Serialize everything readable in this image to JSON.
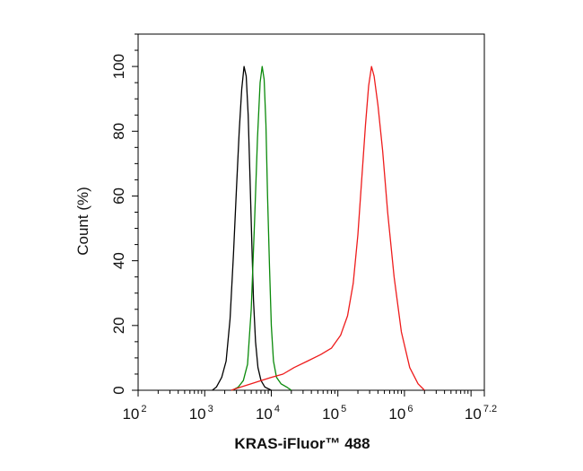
{
  "chart_data": {
    "type": "line",
    "title": "",
    "xlabel": "KRAS-iFluor™ 488",
    "ylabel": "Count (%)",
    "x_scale": "log",
    "xlim": [
      100,
      15848931.9
    ],
    "ylim": [
      0,
      110
    ],
    "grid": false,
    "legend": "none",
    "x_ticks": [
      {
        "base": "10",
        "exp": "2"
      },
      {
        "base": "10",
        "exp": "3"
      },
      {
        "base": "10",
        "exp": "4"
      },
      {
        "base": "10",
        "exp": "5"
      },
      {
        "base": "10",
        "exp": "6"
      },
      {
        "base": "10",
        "exp": "7.2"
      }
    ],
    "y_ticks": [
      "0",
      "20",
      "40",
      "60",
      "80",
      "100"
    ],
    "series": [
      {
        "color": "#000000",
        "x": [
          1300,
          1500,
          1800,
          2100,
          2400,
          2700,
          3000,
          3300,
          3600,
          3900,
          4200,
          4500,
          4800,
          5100,
          5400,
          5800,
          6300,
          7000,
          8000,
          10000
        ],
        "y": [
          0,
          1,
          4,
          9,
          22,
          42,
          62,
          80,
          93,
          100,
          97,
          85,
          65,
          45,
          28,
          15,
          7,
          3,
          1,
          0
        ]
      },
      {
        "color": "#0a8a0a",
        "x": [
          2600,
          3200,
          3800,
          4400,
          5000,
          5600,
          6200,
          6800,
          7300,
          7800,
          8300,
          8800,
          9400,
          10000,
          10800,
          12000,
          14000,
          17000,
          20000
        ],
        "y": [
          0,
          1,
          3,
          8,
          25,
          52,
          78,
          95,
          100,
          96,
          82,
          60,
          38,
          20,
          9,
          4,
          2,
          1,
          0
        ]
      },
      {
        "color": "#ee1c1c",
        "x": [
          2500,
          3500,
          5000,
          7000,
          10000,
          15000,
          22000,
          35000,
          55000,
          80000,
          110000,
          140000,
          170000,
          200000,
          230000,
          260000,
          290000,
          320000,
          350000,
          400000,
          470000,
          560000,
          700000,
          900000,
          1200000,
          1600000,
          2000000
        ],
        "y": [
          0,
          1,
          2,
          3,
          4,
          5,
          7,
          9,
          11,
          13,
          17,
          23,
          33,
          48,
          66,
          82,
          94,
          100,
          97,
          88,
          74,
          55,
          35,
          18,
          7,
          2,
          0
        ]
      }
    ]
  }
}
